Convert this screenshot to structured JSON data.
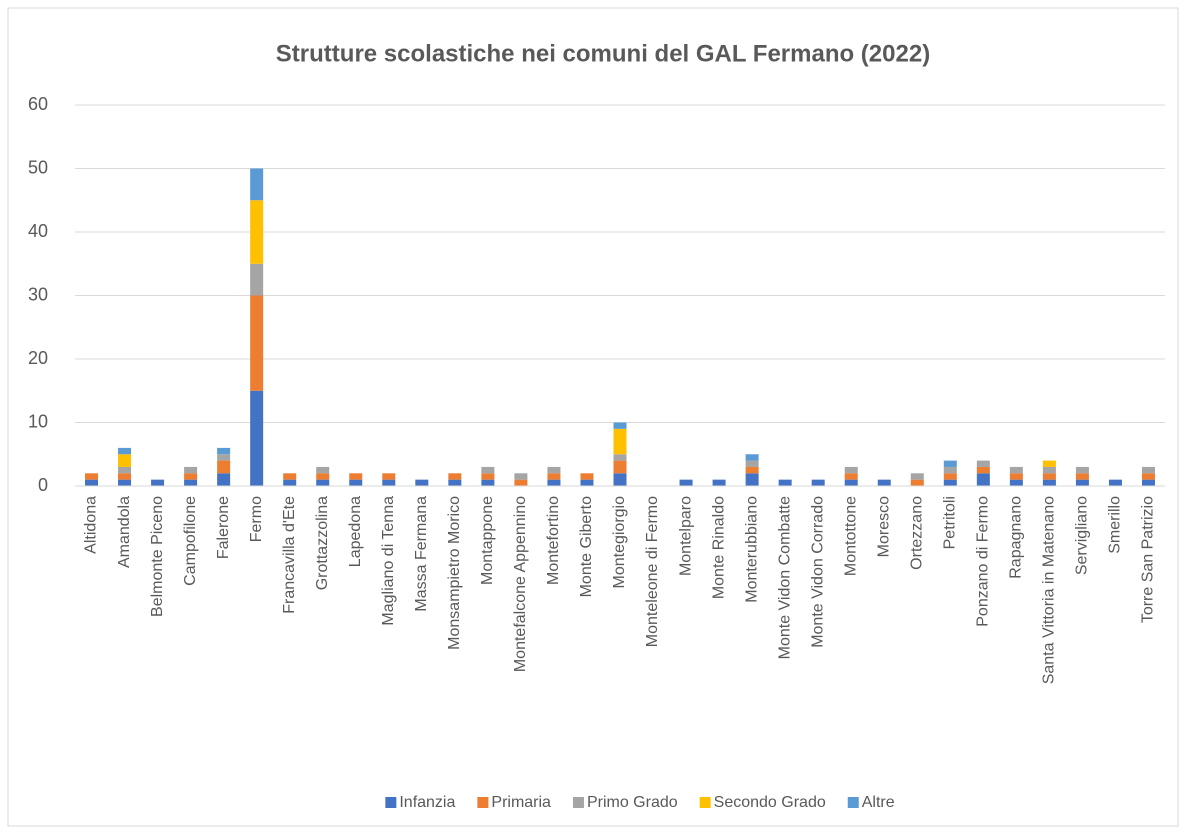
{
  "chart_data": {
    "type": "bar",
    "stacked": true,
    "title": "Strutture scolastiche nei comuni del GAL Fermano (2022)",
    "categories": [
      "Altidona",
      "Amandola",
      "Belmonte Piceno",
      "Campofilone",
      "Falerone",
      "Fermo",
      "Francavilla d'Ete",
      "Grottazzolina",
      "Lapedona",
      "Magliano di Tenna",
      "Massa Fermana",
      "Monsampietro Morico",
      "Montappone",
      "Montefalcone Appennino",
      "Montefortino",
      "Monte Giberto",
      "Montegiorgio",
      "Monteleone di Fermo",
      "Montelparo",
      "Monte Rinaldo",
      "Monterubbiano",
      "Monte Vidon Combatte",
      "Monte Vidon Corrado",
      "Montottone",
      "Moresco",
      "Ortezzano",
      "Petritoli",
      "Ponzano di Fermo",
      "Rapagnano",
      "Santa Vittoria in Matenano",
      "Servigliano",
      "Smerillo",
      "Torre San Patrizio"
    ],
    "series": [
      {
        "name": "Infanzia",
        "color": "#4472c4",
        "values": [
          1,
          1,
          1,
          1,
          2,
          15,
          1,
          1,
          1,
          1,
          1,
          1,
          1,
          0,
          1,
          1,
          2,
          0,
          1,
          1,
          2,
          1,
          1,
          1,
          1,
          0,
          1,
          2,
          1,
          1,
          1,
          1,
          1
        ]
      },
      {
        "name": "Primaria",
        "color": "#ed7d31",
        "values": [
          1,
          1,
          0,
          1,
          2,
          15,
          1,
          1,
          1,
          1,
          0,
          1,
          1,
          1,
          1,
          1,
          2,
          0,
          0,
          0,
          1,
          0,
          0,
          1,
          0,
          1,
          1,
          1,
          1,
          1,
          1,
          0,
          1
        ]
      },
      {
        "name": "Primo Grado",
        "color": "#a5a5a5",
        "values": [
          0,
          1,
          0,
          1,
          1,
          5,
          0,
          1,
          0,
          0,
          0,
          0,
          1,
          1,
          1,
          0,
          1,
          0,
          0,
          0,
          1,
          0,
          0,
          1,
          0,
          1,
          1,
          1,
          1,
          1,
          1,
          0,
          1
        ]
      },
      {
        "name": "Secondo Grado",
        "color": "#ffc000",
        "values": [
          0,
          2,
          0,
          0,
          0,
          10,
          0,
          0,
          0,
          0,
          0,
          0,
          0,
          0,
          0,
          0,
          4,
          0,
          0,
          0,
          0,
          0,
          0,
          0,
          0,
          0,
          0,
          0,
          0,
          1,
          0,
          0,
          0
        ]
      },
      {
        "name": "Altre",
        "color": "#5b9bd5",
        "values": [
          0,
          1,
          0,
          0,
          1,
          5,
          0,
          0,
          0,
          0,
          0,
          0,
          0,
          0,
          0,
          0,
          1,
          0,
          0,
          0,
          1,
          0,
          0,
          0,
          0,
          0,
          1,
          0,
          0,
          0,
          0,
          0,
          0
        ]
      }
    ],
    "ylim": [
      0,
      60
    ],
    "yticks": [
      0,
      10,
      20,
      30,
      40,
      50,
      60
    ],
    "grid": true,
    "legend": "bottom"
  }
}
